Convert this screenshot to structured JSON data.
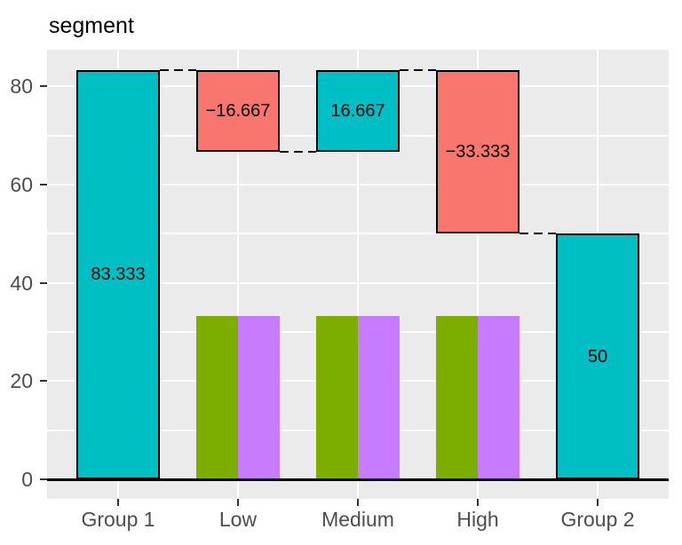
{
  "chart_data": {
    "type": "bar",
    "subtype": "waterfall-with-dodged-group-bars",
    "title": "segment",
    "categories": [
      "Group 1",
      "Low",
      "Medium",
      "High",
      "Group 2"
    ],
    "waterfall_segments": [
      {
        "category": "Group 1",
        "value": 83.333,
        "label": "83.333",
        "start": 0,
        "end": 83.333,
        "color": "#00BFC4"
      },
      {
        "category": "Low",
        "value": -16.667,
        "label": "−16.667",
        "start": 83.333,
        "end": 66.667,
        "color": "#F8766D"
      },
      {
        "category": "Medium",
        "value": 16.667,
        "label": "16.667",
        "start": 66.667,
        "end": 83.333,
        "color": "#00BFC4"
      },
      {
        "category": "High",
        "value": -33.333,
        "label": "−33.333",
        "start": 83.333,
        "end": 50,
        "color": "#F8766D"
      },
      {
        "category": "Group 2",
        "value": 50,
        "label": "50",
        "start": 0,
        "end": 50,
        "color": "#00BFC4"
      }
    ],
    "dodged_bars": [
      {
        "category": "Low",
        "series": [
          {
            "value": 33.333,
            "color": "#7CAE00"
          },
          {
            "value": 33.333,
            "color": "#C77CFF"
          }
        ]
      },
      {
        "category": "Medium",
        "series": [
          {
            "value": 33.333,
            "color": "#7CAE00"
          },
          {
            "value": 33.333,
            "color": "#C77CFF"
          }
        ]
      },
      {
        "category": "High",
        "series": [
          {
            "value": 33.333,
            "color": "#7CAE00"
          },
          {
            "value": 33.333,
            "color": "#C77CFF"
          }
        ]
      }
    ],
    "connectors": [
      {
        "from": "Group 1",
        "to": "Low",
        "level": 83.333
      },
      {
        "from": "Low",
        "to": "Medium",
        "level": 66.667
      },
      {
        "from": "Medium",
        "to": "High",
        "level": 83.333
      },
      {
        "from": "High",
        "to": "Group 2",
        "level": 50
      }
    ],
    "y_axis": {
      "ticks": [
        0,
        20,
        40,
        60,
        80
      ],
      "tick_labels": [
        "0",
        "20",
        "40",
        "60",
        "80"
      ],
      "minor_gridlines": [
        10,
        30,
        50,
        70
      ],
      "range": [
        -4.17,
        87.5
      ]
    },
    "xlabel": "",
    "ylabel": "",
    "grid": true,
    "legend": false,
    "style": {
      "panel_bg": "#EBEBEB",
      "page_bg": "#FFFFFF",
      "grid_color": "#FFFFFF",
      "bar_border_color": "#000000",
      "baseline_color": "#000000",
      "connector_color": "#000000",
      "label_color": "#000000",
      "axis_text_color": "#4D4D4D",
      "tick_mark_color": "#333333",
      "title_color": "#000000"
    }
  }
}
